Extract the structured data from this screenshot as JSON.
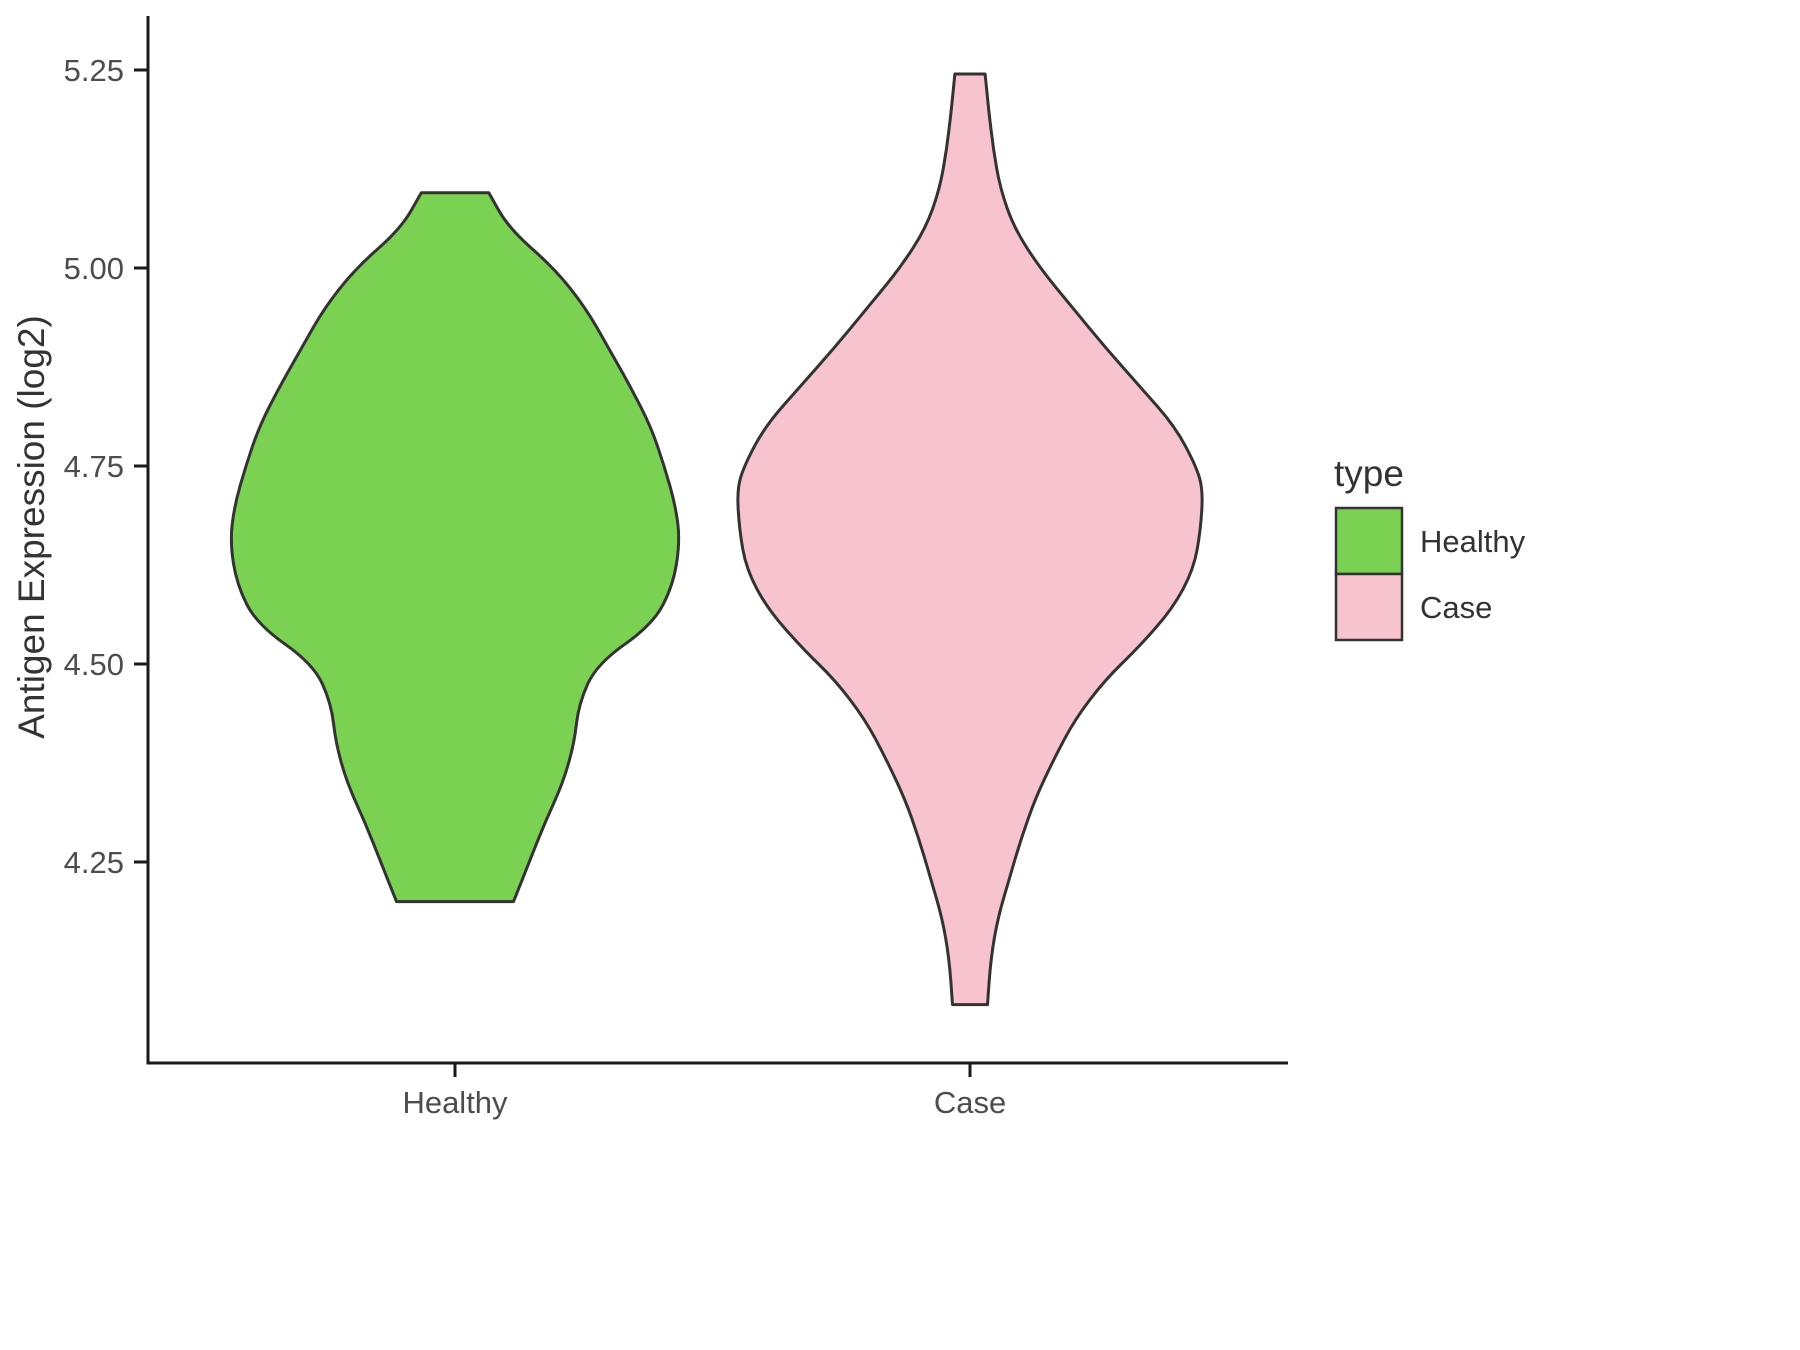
{
  "figure": {
    "background": "#ffffff"
  },
  "axes": {
    "y_title": "Antigen Expression (log2)",
    "y_ticks": [
      "5.25",
      "5.00",
      "4.75",
      "4.50",
      "4.25"
    ],
    "x_ticks": [
      "Healthy",
      "Case"
    ]
  },
  "legend": {
    "title": "type",
    "entries": [
      {
        "label": "Healthy",
        "color": "#7bd152"
      },
      {
        "label": "Case",
        "color": "#f6c3ce"
      }
    ]
  },
  "chart_data": {
    "type": "violin",
    "title": "",
    "xlabel": "",
    "ylabel": "Antigen Expression (log2)",
    "categories": [
      "Healthy",
      "Case"
    ],
    "y_tick_values": [
      5.25,
      5.0,
      4.75,
      4.5,
      4.25
    ],
    "ylim": [
      4.0,
      5.3
    ],
    "grid": false,
    "legend_position": "right",
    "style": {
      "stroke": "#333333",
      "stroke_width": 3
    },
    "series": [
      {
        "name": "Healthy",
        "color": "#7bd152",
        "value_range": [
          4.2,
          5.095
        ],
        "peak_value": 4.655,
        "truncated_flat_ends": true,
        "profile": [
          [
            5.095,
            0.15
          ],
          [
            5.05,
            0.24
          ],
          [
            5.0,
            0.44
          ],
          [
            4.95,
            0.58
          ],
          [
            4.9,
            0.68
          ],
          [
            4.85,
            0.78
          ],
          [
            4.8,
            0.87
          ],
          [
            4.75,
            0.93
          ],
          [
            4.7,
            0.98
          ],
          [
            4.655,
            1.0
          ],
          [
            4.6,
            0.97
          ],
          [
            4.55,
            0.88
          ],
          [
            4.5,
            0.63
          ],
          [
            4.45,
            0.55
          ],
          [
            4.4,
            0.53
          ],
          [
            4.35,
            0.48
          ],
          [
            4.3,
            0.4
          ],
          [
            4.25,
            0.33
          ],
          [
            4.2,
            0.26
          ]
        ]
      },
      {
        "name": "Case",
        "color": "#f6c3ce",
        "value_range": [
          4.07,
          5.245
        ],
        "peak_value": 4.72,
        "truncated_flat_ends": true,
        "profile": [
          [
            5.245,
            0.065
          ],
          [
            5.2,
            0.08
          ],
          [
            5.15,
            0.1
          ],
          [
            5.1,
            0.13
          ],
          [
            5.05,
            0.19
          ],
          [
            5.0,
            0.3
          ],
          [
            4.95,
            0.44
          ],
          [
            4.9,
            0.58
          ],
          [
            4.85,
            0.73
          ],
          [
            4.8,
            0.88
          ],
          [
            4.75,
            0.97
          ],
          [
            4.72,
            1.0
          ],
          [
            4.67,
            0.99
          ],
          [
            4.62,
            0.96
          ],
          [
            4.57,
            0.87
          ],
          [
            4.52,
            0.72
          ],
          [
            4.48,
            0.58
          ],
          [
            4.43,
            0.45
          ],
          [
            4.38,
            0.36
          ],
          [
            4.33,
            0.28
          ],
          [
            4.28,
            0.22
          ],
          [
            4.23,
            0.17
          ],
          [
            4.18,
            0.12
          ],
          [
            4.13,
            0.09
          ],
          [
            4.07,
            0.075
          ]
        ]
      }
    ]
  }
}
